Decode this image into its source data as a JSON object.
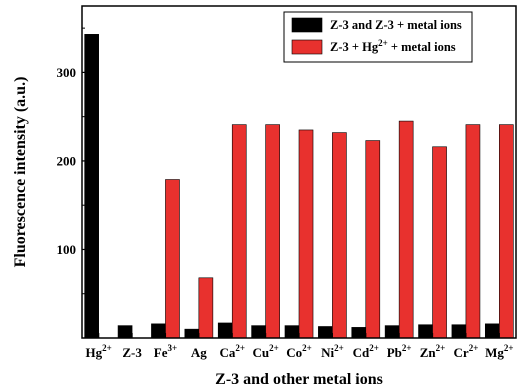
{
  "chart_data": {
    "type": "bar",
    "xlabel": "Z-3 and other metal ions",
    "ylabel": "Fluorescence intensity (a.u.)",
    "ylim": [
      0,
      375
    ],
    "yticks": [
      100,
      200,
      300
    ],
    "categories": [
      {
        "base": "Hg",
        "sup": "2+"
      },
      {
        "base": "Z-3",
        "sup": ""
      },
      {
        "base": "Fe",
        "sup": "3+"
      },
      {
        "base": "Ag",
        "sup": ""
      },
      {
        "base": "Ca",
        "sup": "2+"
      },
      {
        "base": "Cu",
        "sup": "2+"
      },
      {
        "base": "Co",
        "sup": "2+"
      },
      {
        "base": "Ni",
        "sup": "2+"
      },
      {
        "base": "Cd",
        "sup": "2+"
      },
      {
        "base": "Pb",
        "sup": "2+"
      },
      {
        "base": "Zn",
        "sup": "2+"
      },
      {
        "base": "Cr",
        "sup": "2+"
      },
      {
        "base": "Mg",
        "sup": "2+"
      }
    ],
    "series": [
      {
        "name": "Z-3 and Z-3 + metal ions",
        "color": "#000000",
        "values": [
          343,
          14,
          16,
          10,
          17,
          14,
          14,
          13,
          12,
          14,
          15,
          15,
          16
        ]
      },
      {
        "name": "Z-3 + Hg2+ + metal ions",
        "name_parts": {
          "pre": "Z-3 + Hg",
          "sup": "2+",
          "post": " + metal ions"
        },
        "color": "#e8312e",
        "values": [
          null,
          null,
          179,
          68,
          241,
          241,
          235,
          232,
          223,
          245,
          216,
          241,
          241
        ]
      }
    ],
    "legend_position": "top-right",
    "grid": false
  }
}
